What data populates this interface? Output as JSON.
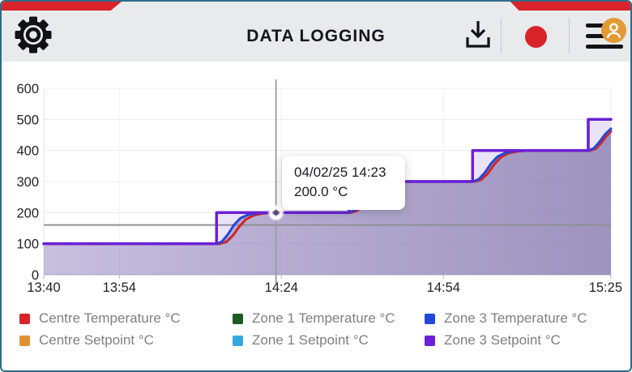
{
  "header": {
    "title": "DATA LOGGING",
    "colors": {
      "header_bg": "#e8eaec",
      "accent_red": "#d8232a",
      "window_border": "#2e6b88",
      "avatar_orange": "#e29a35",
      "icon_black": "#121216"
    }
  },
  "tooltip": {
    "datetime": "04/02/25 14:23",
    "value": "200.0 °C"
  },
  "legend": {
    "items": [
      {
        "label": "Centre Temperature °C",
        "color": "#d8232a"
      },
      {
        "label": "Zone 1 Temperature °C",
        "color": "#1d5a21"
      },
      {
        "label": "Zone 3 Temperature °C",
        "color": "#2148d8"
      },
      {
        "label": "Centre Setpoint °C",
        "color": "#e0912f"
      },
      {
        "label": "Zone 1 Setpoint °C",
        "color": "#35a7e0"
      },
      {
        "label": "Zone 3 Setpoint °C",
        "color": "#6c1fd6"
      }
    ]
  },
  "chart_data": {
    "type": "line",
    "title": "",
    "xlabel": "",
    "ylabel": "",
    "x_axis": {
      "tick_labels": [
        "13:40",
        "13:54",
        "14:24",
        "14:54",
        "15:25"
      ],
      "tick_minutes": [
        0,
        14,
        44,
        74,
        105
      ],
      "start_time": "13:40",
      "end_time": "15:25"
    },
    "y_axis": {
      "ticks": [
        0,
        100,
        200,
        300,
        400,
        500,
        600
      ],
      "range": [
        0,
        600
      ]
    },
    "grid": true,
    "legend_position": "bottom",
    "crosshair": {
      "date_label": "04/02/25",
      "time_label": "14:23",
      "time_minutes": 43,
      "snapped_value": 200.0,
      "h_line_value": 160
    },
    "series": [
      {
        "name": "Centre Temperature °C",
        "color": "#d8232a",
        "role": "temperature",
        "points": [
          [
            0,
            100
          ],
          [
            32.6,
            100
          ],
          [
            33.8,
            106
          ],
          [
            35,
            126
          ],
          [
            36.2,
            155
          ],
          [
            37.4,
            178
          ],
          [
            38.8,
            191
          ],
          [
            40.4,
            197
          ],
          [
            42.5,
            200
          ],
          [
            56.8,
            200
          ],
          [
            58,
            206
          ],
          [
            59.2,
            226
          ],
          [
            60.4,
            255
          ],
          [
            61.6,
            278
          ],
          [
            63,
            291
          ],
          [
            64.6,
            297
          ],
          [
            66.5,
            300
          ],
          [
            79.8,
            300
          ],
          [
            81,
            306
          ],
          [
            82.2,
            326
          ],
          [
            83.4,
            355
          ],
          [
            84.6,
            378
          ],
          [
            86,
            391
          ],
          [
            87.6,
            397
          ],
          [
            89.5,
            400
          ],
          [
            101.2,
            400
          ],
          [
            102.2,
            406
          ],
          [
            103.2,
            424
          ],
          [
            104.2,
            448
          ],
          [
            105,
            462
          ]
        ]
      },
      {
        "name": "Zone 1 Temperature °C",
        "color": "#1d5a21",
        "role": "temperature",
        "points": [
          [
            0,
            100
          ],
          [
            32.6,
            100
          ],
          [
            33.8,
            106
          ],
          [
            35,
            126
          ],
          [
            36.2,
            155
          ],
          [
            37.4,
            178
          ],
          [
            38.8,
            191
          ],
          [
            40.4,
            197
          ],
          [
            42.5,
            200
          ],
          [
            56.8,
            200
          ],
          [
            58,
            206
          ],
          [
            59.2,
            226
          ],
          [
            60.4,
            255
          ],
          [
            61.6,
            278
          ],
          [
            63,
            291
          ],
          [
            64.6,
            297
          ],
          [
            66.5,
            300
          ],
          [
            79.8,
            300
          ],
          [
            81,
            306
          ],
          [
            82.2,
            326
          ],
          [
            83.4,
            355
          ],
          [
            84.6,
            378
          ],
          [
            86,
            391
          ],
          [
            87.6,
            397
          ],
          [
            89.5,
            400
          ],
          [
            101.2,
            400
          ],
          [
            102.2,
            406
          ],
          [
            103.2,
            424
          ],
          [
            104.2,
            448
          ],
          [
            105,
            462
          ]
        ]
      },
      {
        "name": "Zone 3 Temperature °C",
        "color": "#2148d8",
        "role": "temperature",
        "points": [
          [
            0,
            100
          ],
          [
            32.1,
            100
          ],
          [
            33,
            107
          ],
          [
            34.1,
            130
          ],
          [
            35.2,
            160
          ],
          [
            36.4,
            182
          ],
          [
            37.8,
            193
          ],
          [
            39.5,
            198
          ],
          [
            41.5,
            200
          ],
          [
            56.5,
            200
          ],
          [
            57.6,
            208
          ],
          [
            58.7,
            230
          ],
          [
            59.8,
            258
          ],
          [
            61,
            280
          ],
          [
            62.4,
            292
          ],
          [
            64,
            298
          ],
          [
            66,
            300
          ],
          [
            79.5,
            300
          ],
          [
            80.6,
            308
          ],
          [
            81.7,
            330
          ],
          [
            82.8,
            358
          ],
          [
            84,
            380
          ],
          [
            85.4,
            392
          ],
          [
            87,
            398
          ],
          [
            89,
            400
          ],
          [
            100.9,
            400
          ],
          [
            101.9,
            408
          ],
          [
            102.9,
            428
          ],
          [
            103.9,
            452
          ],
          [
            105,
            470
          ]
        ]
      },
      {
        "name": "Centre Setpoint °C",
        "color": "#e0912f",
        "role": "setpoint",
        "points": [
          [
            0,
            100
          ],
          [
            32,
            100
          ],
          [
            32,
            200
          ],
          [
            56.5,
            200
          ],
          [
            56.5,
            300
          ],
          [
            79.4,
            300
          ],
          [
            79.4,
            400
          ],
          [
            100.8,
            400
          ],
          [
            100.8,
            500
          ],
          [
            105,
            500
          ]
        ]
      },
      {
        "name": "Zone 1 Setpoint °C",
        "color": "#35a7e0",
        "role": "setpoint",
        "points": [
          [
            0,
            100
          ],
          [
            32,
            100
          ],
          [
            32,
            200
          ],
          [
            56.5,
            200
          ],
          [
            56.5,
            300
          ],
          [
            79.4,
            300
          ],
          [
            79.4,
            400
          ],
          [
            100.8,
            400
          ],
          [
            100.8,
            500
          ],
          [
            105,
            500
          ]
        ]
      },
      {
        "name": "Zone 3 Setpoint °C",
        "color": "#6c1fd6",
        "role": "setpoint",
        "points": [
          [
            0,
            100
          ],
          [
            32,
            100
          ],
          [
            32,
            200
          ],
          [
            56.5,
            200
          ],
          [
            56.5,
            300
          ],
          [
            79.4,
            300
          ],
          [
            79.4,
            400
          ],
          [
            100.8,
            400
          ],
          [
            100.8,
            500
          ],
          [
            105,
            500
          ]
        ]
      }
    ]
  }
}
